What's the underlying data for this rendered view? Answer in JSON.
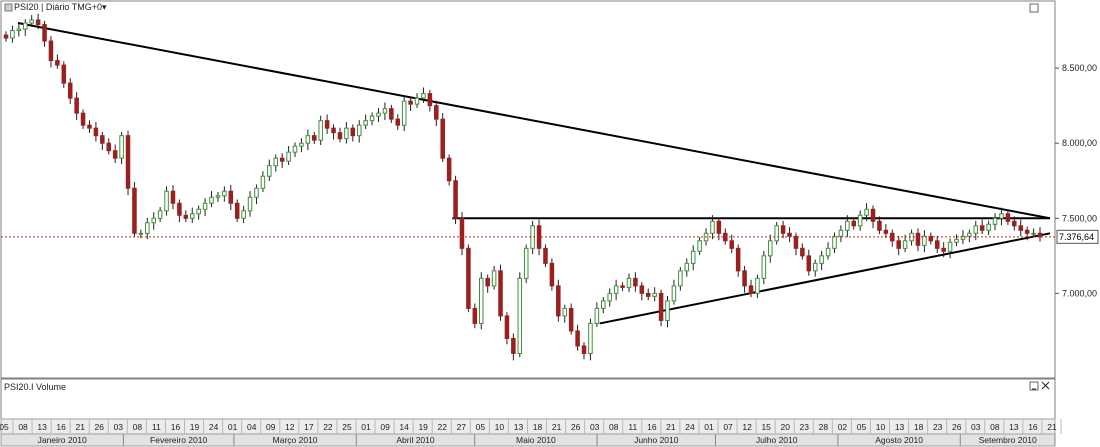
{
  "header": {
    "title": "PSI20 | Diário TMG+0",
    "menu_icon": "caret-down-icon"
  },
  "volume_pane": {
    "title": "PSI20.I Volume",
    "minimize_icon": "minimize-icon",
    "close_icon": "close-icon"
  },
  "price_pane": {
    "minimize_icon": "minimize-icon"
  },
  "colors": {
    "up": "#3f8f3f",
    "down": "#9a2020",
    "line": "#000000",
    "last_price": "#d42020",
    "grid": "#c8c8c8"
  },
  "chart_data": {
    "type": "candlestick",
    "title": "PSI20 | Diário TMG+0",
    "ylim": [
      6450,
      8900
    ],
    "yticks": [
      "8.500,00",
      "8.000,00",
      "7.500,00",
      "7.000,00"
    ],
    "yticks_values": [
      8500,
      8000,
      7500,
      7000
    ],
    "last_price": 7376.64,
    "last_price_label": "7.376,64",
    "grid": false,
    "x_day_labels": [
      "05",
      "08",
      "13",
      "16",
      "21",
      "26",
      "03",
      "08",
      "11",
      "16",
      "19",
      "24",
      "01",
      "04",
      "09",
      "12",
      "17",
      "22",
      "25",
      "01",
      "09",
      "14",
      "19",
      "22",
      "27",
      "05",
      "10",
      "13",
      "18",
      "21",
      "26",
      "03",
      "08",
      "11",
      "16",
      "21",
      "24",
      "01",
      "07",
      "12",
      "15",
      "20",
      "23",
      "28",
      "02",
      "05",
      "10",
      "13",
      "18",
      "23",
      "26",
      "03",
      "08",
      "13",
      "16",
      "21"
    ],
    "x_month_labels": [
      "Janeiro 2010",
      "Fevereiro 2010",
      "Março 2010",
      "Abril 2010",
      "Maio 2010",
      "Junho 2010",
      "Julho 2010",
      "Agosto 2010",
      "Setembro 2010"
    ],
    "closes": [
      8700,
      8750,
      8760,
      8800,
      8820,
      8790,
      8680,
      8550,
      8520,
      8400,
      8300,
      8200,
      8120,
      8100,
      8050,
      8000,
      7950,
      7900,
      8050,
      7700,
      7400,
      7400,
      7470,
      7500,
      7550,
      7680,
      7600,
      7520,
      7500,
      7530,
      7560,
      7600,
      7640,
      7650,
      7680,
      7600,
      7500,
      7550,
      7640,
      7700,
      7780,
      7850,
      7900,
      7880,
      7940,
      7980,
      8000,
      8050,
      8020,
      8150,
      8100,
      8070,
      8030,
      8100,
      8050,
      8120,
      8150,
      8180,
      8200,
      8230,
      8160,
      8120,
      8280,
      8260,
      8300,
      8330,
      8250,
      8160,
      7900,
      7750,
      7500,
      7300,
      6900,
      6800,
      7100,
      7050,
      7150,
      6850,
      6700,
      6600,
      7100,
      7300,
      7450,
      7300,
      7200,
      7050,
      6850,
      6900,
      6750,
      6650,
      6600,
      6800,
      6900,
      6950,
      7000,
      7050,
      7040,
      7100,
      7050,
      7000,
      6980,
      7000,
      6820,
      6950,
      7050,
      7150,
      7200,
      7280,
      7350,
      7400,
      7480,
      7400,
      7350,
      7300,
      7150,
      7050,
      7000,
      7100,
      7250,
      7350,
      7450,
      7400,
      7380,
      7300,
      7250,
      7150,
      7200,
      7250,
      7300,
      7380,
      7420,
      7480,
      7450,
      7520,
      7560,
      7480,
      7420,
      7400,
      7350,
      7300,
      7350,
      7400,
      7320,
      7380,
      7350,
      7300,
      7280,
      7340,
      7360,
      7380,
      7400,
      7450,
      7420,
      7460,
      7500,
      7530,
      7480,
      7450,
      7420,
      7400,
      7400,
      7376.64
    ],
    "trendlines": [
      {
        "name": "descending resistance",
        "x": [
          "2010-01-08",
          "2010-09-24"
        ],
        "y": [
          8800,
          7500
        ]
      },
      {
        "name": "horizontal resistance",
        "x": [
          "2010-04-27",
          "2010-09-24"
        ],
        "y": [
          7500,
          7500
        ]
      },
      {
        "name": "ascending support",
        "x": [
          "2010-06-03",
          "2010-09-24"
        ],
        "y": [
          6800,
          7400
        ]
      }
    ]
  }
}
